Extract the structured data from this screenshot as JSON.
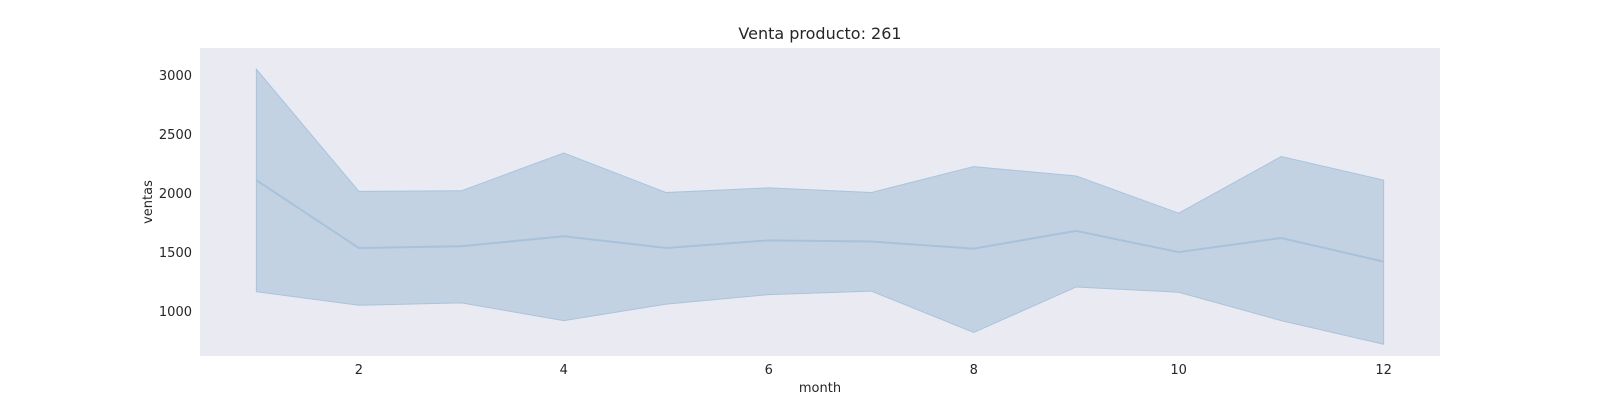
{
  "chart_data": {
    "type": "line",
    "title": "Venta producto: 261",
    "xlabel": "month",
    "ylabel": "ventas",
    "x": [
      1,
      2,
      3,
      4,
      5,
      6,
      7,
      8,
      9,
      10,
      11,
      12
    ],
    "series": [
      {
        "values": [
          2110,
          1535,
          1550,
          1635,
          1535,
          1600,
          1590,
          1530,
          1680,
          1500,
          1620,
          1420
        ],
        "upper": [
          3050,
          2015,
          2020,
          2340,
          2005,
          2045,
          2005,
          2225,
          2145,
          1830,
          2310,
          2110
        ],
        "lower": [
          1165,
          1050,
          1070,
          920,
          1060,
          1140,
          1170,
          820,
          1205,
          1160,
          920,
          720
        ]
      }
    ],
    "xticks": [
      2,
      4,
      6,
      8,
      10,
      12
    ],
    "yticks": [
      1000,
      1500,
      2000,
      2500,
      3000
    ],
    "xlim": [
      0.45,
      12.55
    ],
    "ylim": [
      620,
      3230
    ],
    "grid": false,
    "colors": {
      "plot_bg": "#eaeaf2",
      "line": "#a6c3db",
      "band": "#c2d2e3",
      "band_edge": "#a9c4dc"
    }
  }
}
